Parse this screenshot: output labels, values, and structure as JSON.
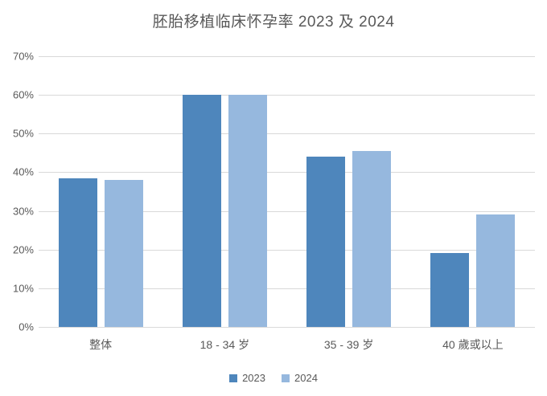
{
  "chart_data": {
    "type": "bar",
    "title": "胚胎移植临床怀孕率 2023 及 2024",
    "categories": [
      "整体",
      "18 - 34 岁",
      "35 - 39 岁",
      "40 歲或以上"
    ],
    "series": [
      {
        "name": "2023",
        "color": "#4E86BC",
        "values": [
          38.5,
          60,
          44,
          19.2
        ]
      },
      {
        "name": "2024",
        "color": "#96B8DE",
        "values": [
          38,
          60,
          45.5,
          29
        ]
      }
    ],
    "xlabel": "",
    "ylabel": "",
    "ylim": [
      0,
      70
    ],
    "ytick_step": 10,
    "yticks": [
      "0%",
      "10%",
      "20%",
      "30%",
      "40%",
      "50%",
      "60%",
      "70%"
    ],
    "grid": true,
    "legend_position": "bottom",
    "background_color": "#FFFFFF",
    "text_color": "#595959",
    "gridline_color": "#D9D9D9"
  }
}
